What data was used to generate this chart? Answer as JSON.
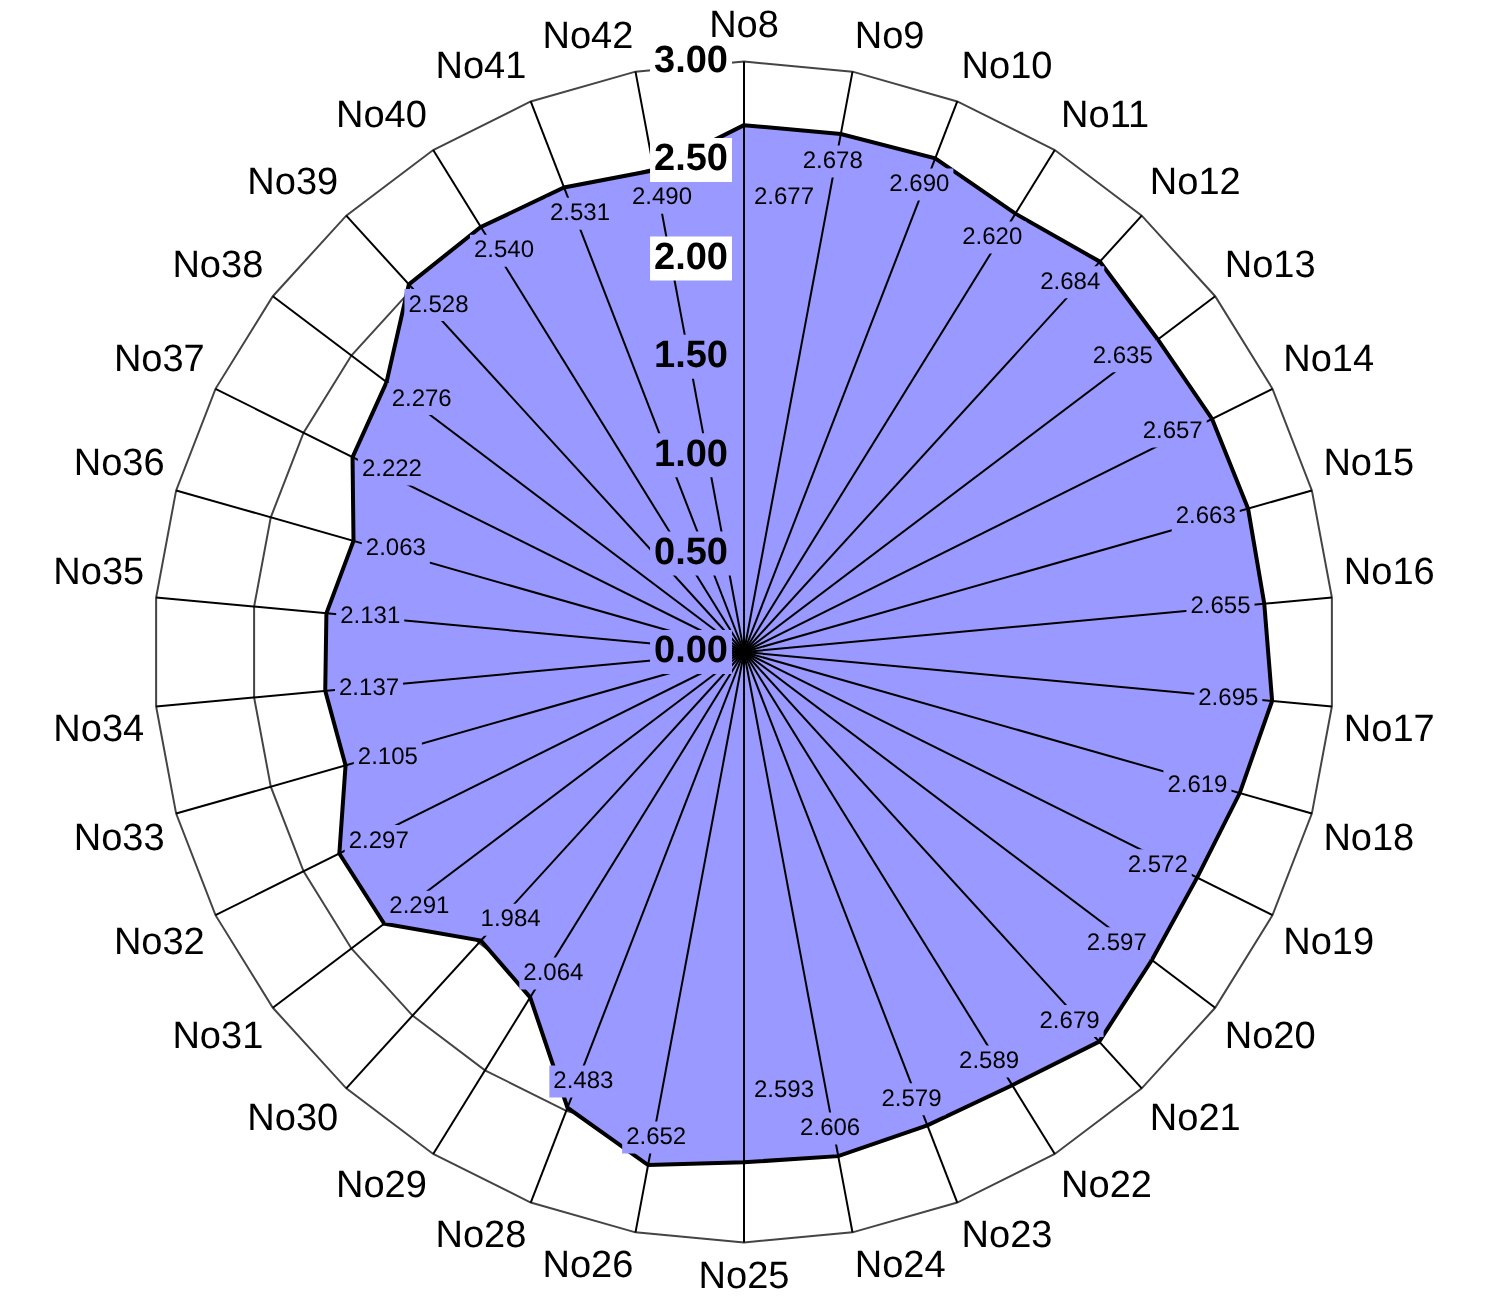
{
  "chart_data": {
    "type": "radar",
    "categories": [
      "No8",
      "No9",
      "No10",
      "No11",
      "No12",
      "No13",
      "No14",
      "No15",
      "No16",
      "No17",
      "No18",
      "No19",
      "No20",
      "No21",
      "No22",
      "No23",
      "No24",
      "No25",
      "No26",
      "No28",
      "No29",
      "No30",
      "No31",
      "No32",
      "No33",
      "No34",
      "No35",
      "No36",
      "No37",
      "No38",
      "No39",
      "No40",
      "No41",
      "No42"
    ],
    "series": [
      {
        "color": "#9999ff",
        "values": [
          2.677,
          2.678,
          2.69,
          2.62,
          2.684,
          2.635,
          2.657,
          2.663,
          2.655,
          2.695,
          2.619,
          2.572,
          2.597,
          2.679,
          2.589,
          2.579,
          2.606,
          2.593,
          2.652,
          2.483,
          2.064,
          1.984,
          2.291,
          2.297,
          2.105,
          2.137,
          2.131,
          2.063,
          2.222,
          2.276,
          2.528,
          2.54,
          2.531,
          2.49
        ],
        "value_labels": [
          "2.677",
          "2.678",
          "2.690",
          "2.620",
          "2.684",
          "2.635",
          "2.657",
          "2.663",
          "2.655",
          "2.695",
          "2.619",
          "2.572",
          "2.597",
          "2.679",
          "2.589",
          "2.579",
          "2.606",
          "2.593",
          "2.652",
          "2.483",
          "2.064",
          "1.984",
          "2.291",
          "2.297",
          "2.105",
          "2.137",
          "2.131",
          "2.063",
          "2.222",
          "2.276",
          "2.528",
          "2.540",
          "2.531",
          "2.490"
        ]
      }
    ],
    "ylim": [
      0,
      3
    ],
    "yticks": [
      {
        "value": 0,
        "label": "0.00"
      },
      {
        "value": 0.5,
        "label": "0.50"
      },
      {
        "value": 1,
        "label": "1.00"
      },
      {
        "value": 1.5,
        "label": "1.50"
      },
      {
        "value": 2,
        "label": "2.00"
      },
      {
        "value": 2.5,
        "label": "2.50"
      },
      {
        "value": 3,
        "label": "3.00"
      }
    ],
    "grid": true,
    "legend": false,
    "marker": "none"
  }
}
